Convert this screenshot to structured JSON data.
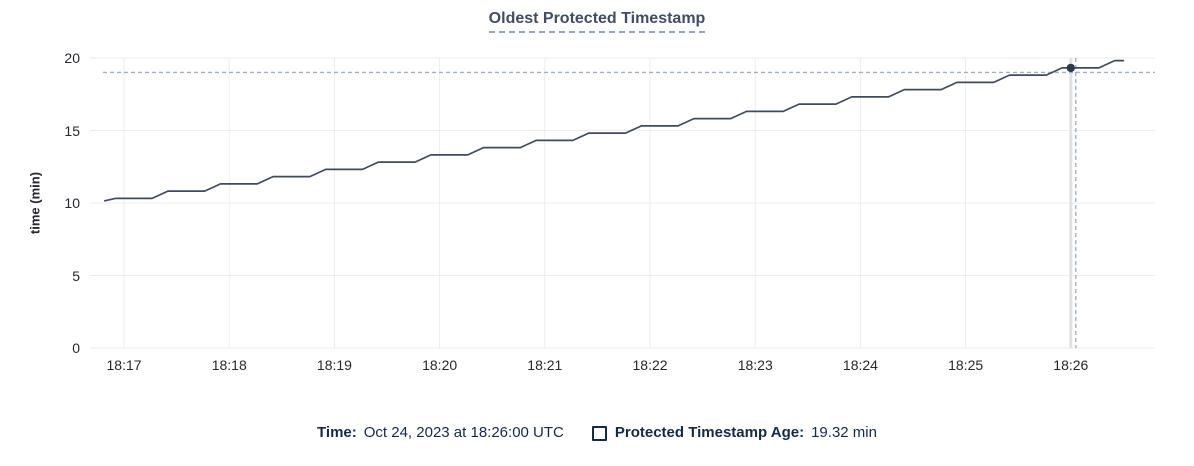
{
  "chart_data": {
    "type": "line",
    "title": "Oldest Protected Timestamp",
    "xlabel": "",
    "ylabel": "time (min)",
    "ylim": [
      0,
      20
    ],
    "y_ticks": [
      0,
      5,
      10,
      15,
      20
    ],
    "y_tick_labels": [
      "0",
      "5",
      "10",
      "15",
      "20"
    ],
    "x_tick_labels": [
      "18:17",
      "18:18",
      "18:19",
      "18:20",
      "18:21",
      "18:22",
      "18:23",
      "18:24",
      "18:25",
      "18:26"
    ],
    "x_tick_seconds": [
      0,
      60,
      120,
      180,
      240,
      300,
      360,
      420,
      480,
      540
    ],
    "x_domain_seconds": [
      -12,
      588
    ],
    "x_unit": "seconds offset from 18:17",
    "grid": true,
    "legend_position": "bottom",
    "series": [
      {
        "name": "Protected Timestamp Age",
        "unit": "min",
        "color": "#3f4b61",
        "points": [
          [
            -11,
            10.15
          ],
          [
            -5,
            10.32
          ],
          [
            16,
            10.32
          ],
          [
            25,
            10.82
          ],
          [
            46,
            10.82
          ],
          [
            55,
            11.32
          ],
          [
            76,
            11.32
          ],
          [
            85,
            11.82
          ],
          [
            106,
            11.82
          ],
          [
            115,
            12.32
          ],
          [
            136,
            12.32
          ],
          [
            145,
            12.82
          ],
          [
            166,
            12.82
          ],
          [
            175,
            13.32
          ],
          [
            196,
            13.32
          ],
          [
            205,
            13.82
          ],
          [
            226,
            13.82
          ],
          [
            235,
            14.32
          ],
          [
            256,
            14.32
          ],
          [
            265,
            14.82
          ],
          [
            286,
            14.82
          ],
          [
            295,
            15.32
          ],
          [
            316,
            15.32
          ],
          [
            325,
            15.82
          ],
          [
            346,
            15.82
          ],
          [
            355,
            16.32
          ],
          [
            376,
            16.32
          ],
          [
            385,
            16.82
          ],
          [
            406,
            16.82
          ],
          [
            415,
            17.32
          ],
          [
            436,
            17.32
          ],
          [
            445,
            17.82
          ],
          [
            466,
            17.82
          ],
          [
            475,
            18.32
          ],
          [
            496,
            18.32
          ],
          [
            505,
            18.82
          ],
          [
            526,
            18.82
          ],
          [
            535,
            19.32
          ],
          [
            556,
            19.32
          ],
          [
            565,
            19.82
          ],
          [
            570,
            19.82
          ]
        ]
      }
    ],
    "crosshair": {
      "x_seconds": 540,
      "value": 19.32,
      "value_label": "19.32 min",
      "time_label": "Oct 24, 2023 at 18:26:00 UTC"
    }
  },
  "hover_legend": {
    "time_label": "Time:",
    "time_value": "Oct 24, 2023 at 18:26:00 UTC",
    "series_label": "Protected Timestamp Age:",
    "series_value": "19.32 min"
  },
  "icons": {
    "series_swatch": "empty-checkbox"
  },
  "colors": {
    "line": "#3f4b61",
    "dot": "#2c3a52",
    "crosshair": "#a0b2c2",
    "grid": "#ededed",
    "hover_band": "#e2e2e2",
    "title_text": "#3f4e66",
    "axis_text": "#24272e",
    "legend_text": "#122a4c"
  }
}
